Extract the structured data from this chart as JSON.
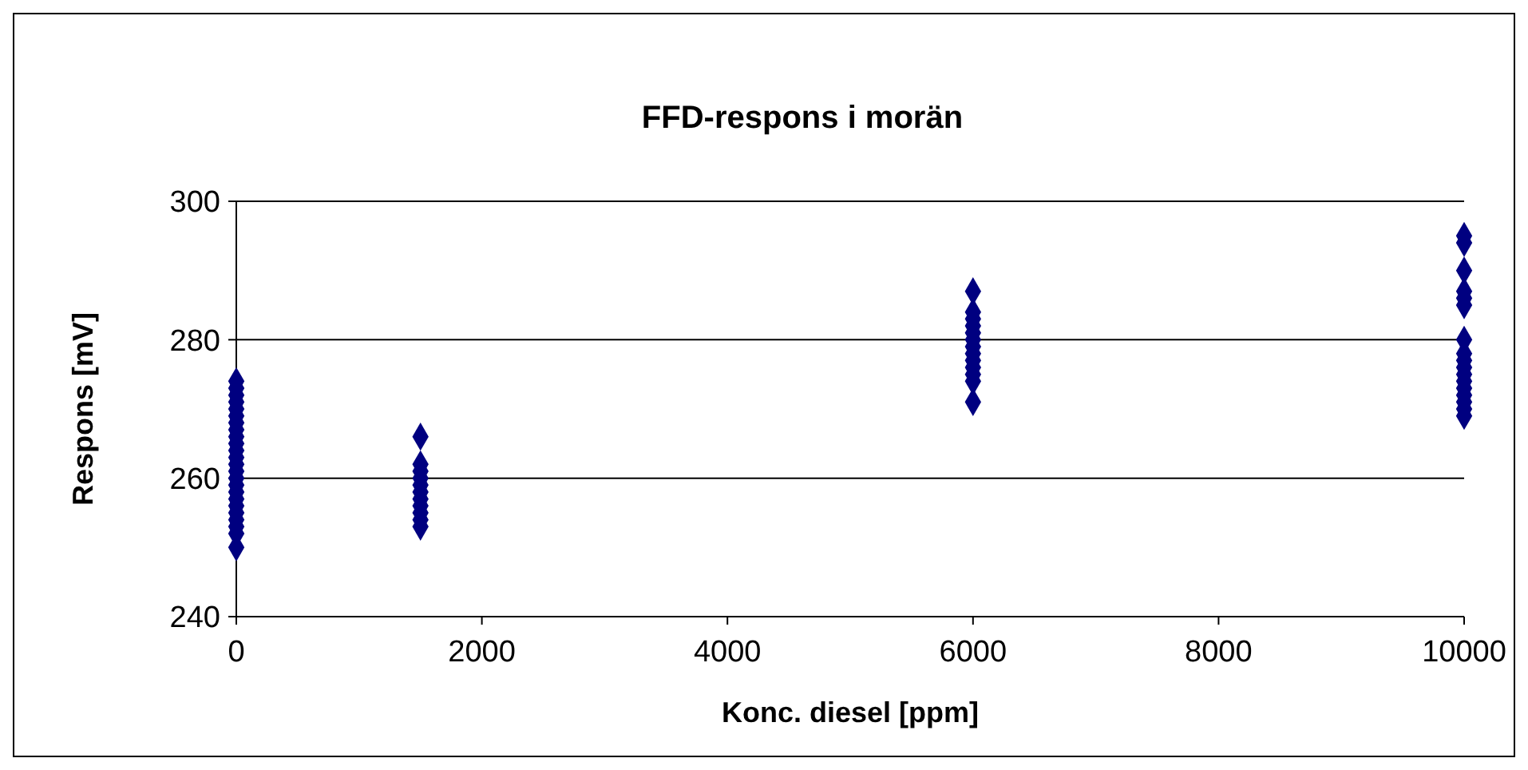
{
  "chart_data": {
    "type": "scatter",
    "title": "FFD-respons i morän",
    "xlabel": "Konc. diesel [ppm]",
    "ylabel": "Respons [mV]",
    "x": [
      0,
      0,
      0,
      0,
      0,
      0,
      0,
      0,
      0,
      0,
      0,
      0,
      0,
      0,
      0,
      0,
      0,
      0,
      0,
      0,
      0,
      0,
      0,
      0,
      1500,
      1500,
      1500,
      1500,
      1500,
      1500,
      1500,
      1500,
      1500,
      1500,
      1500,
      6000,
      6000,
      6000,
      6000,
      6000,
      6000,
      6000,
      6000,
      6000,
      6000,
      6000,
      6000,
      6000,
      10000,
      10000,
      10000,
      10000,
      10000,
      10000,
      10000,
      10000,
      10000,
      10000,
      10000,
      10000,
      10000,
      10000,
      10000,
      10000,
      10000
    ],
    "values": [
      250,
      252,
      253,
      254,
      255,
      256,
      257,
      258,
      259,
      260,
      261,
      262,
      263,
      264,
      265,
      266,
      267,
      268,
      269,
      270,
      271,
      272,
      273,
      274,
      253,
      254,
      255,
      256,
      257,
      258,
      259,
      260,
      261,
      262,
      266,
      271,
      274,
      275,
      276,
      277,
      278,
      279,
      280,
      281,
      282,
      283,
      284,
      287,
      269,
      270,
      271,
      272,
      273,
      274,
      275,
      276,
      277,
      278,
      280,
      285,
      286,
      287,
      290,
      294,
      295
    ],
    "color": "#000080",
    "marker": "diamond",
    "xlim": [
      0,
      10000
    ],
    "xticks": [
      0,
      2000,
      4000,
      6000,
      8000,
      10000
    ],
    "ylim": [
      240,
      300
    ],
    "yticks": [
      240,
      260,
      280,
      300
    ],
    "grid": "y"
  }
}
